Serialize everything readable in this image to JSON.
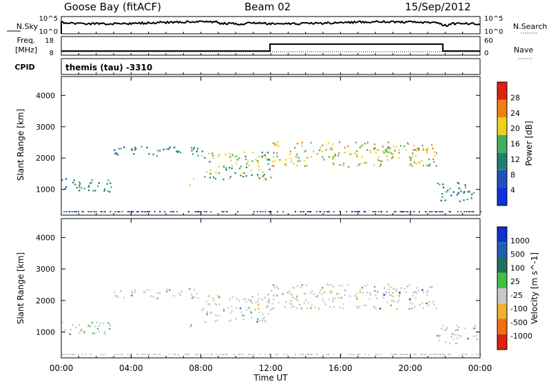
{
  "header": {
    "station": "Goose Bay (fitACF)",
    "beam": "Beam 02",
    "date": "15/Sep/2012"
  },
  "status_panels": {
    "nsky_label": "N.Sky",
    "nsky_ticks": [
      "10^5",
      "10^0"
    ],
    "nsearch_label": "N.Search",
    "nsearch_ticks": [
      "10^5",
      "10^0"
    ],
    "freq_label_top": "Freq.",
    "freq_label_bottom": "[MHz]",
    "freq_ticks": [
      "18",
      "8"
    ],
    "nave_label": "Nave",
    "nave_ticks": [
      "60",
      "0"
    ],
    "cpid_label": "CPID",
    "cpid_text": "themis (tau) -3310"
  },
  "chart_data": [
    {
      "type": "heatmap",
      "name": "power-panel",
      "ylabel": "Slant Range [km]",
      "yticks": [
        1000,
        2000,
        3000,
        4000
      ],
      "ylim": [
        180,
        4600
      ],
      "xlim": [
        0,
        24
      ],
      "colorbar": {
        "label": "Power [dB]",
        "ticks": [
          "4",
          "8",
          "12",
          "16",
          "20",
          "24",
          "28"
        ],
        "colors": [
          "#1030e0",
          "#2050c0",
          "#208070",
          "#40b060",
          "#f0d020",
          "#f08010",
          "#e02010"
        ]
      },
      "echo_regions": [
        {
          "t0": 0.0,
          "t1": 3.0,
          "r0": 880,
          "r1": 1320,
          "level": 2
        },
        {
          "t0": 3.0,
          "t1": 8.0,
          "r0": 2050,
          "r1": 2350,
          "level": 2
        },
        {
          "t0": 7.3,
          "t1": 7.7,
          "r0": 1100,
          "r1": 1320,
          "level": 5
        },
        {
          "t0": 8.0,
          "t1": 12.0,
          "r0": 1300,
          "r1": 2200,
          "level": 3
        },
        {
          "t0": 12.0,
          "t1": 21.5,
          "r0": 1700,
          "r1": 2500,
          "level": 4
        },
        {
          "t0": 21.5,
          "t1": 23.8,
          "r0": 600,
          "r1": 1200,
          "level": 2
        }
      ]
    },
    {
      "type": "heatmap",
      "name": "velocity-panel",
      "ylabel": "Slant Range [km]",
      "xlabel": "Time UT",
      "xticks": [
        "00:00",
        "04:00",
        "08:00",
        "12:00",
        "16:00",
        "20:00",
        "00:00"
      ],
      "yticks": [
        1000,
        2000,
        3000,
        4000
      ],
      "ylim": [
        180,
        4600
      ],
      "xlim": [
        0,
        24
      ],
      "colorbar": {
        "label": "Velocity [m s^-1]",
        "ticks": [
          "1000",
          "500",
          "100",
          "25",
          "-25",
          "-100",
          "-500",
          "-1000"
        ],
        "colors": [
          "#1030d0",
          "#2060b0",
          "#207060",
          "#40c040",
          "#c8c8c8",
          "#f0b030",
          "#f07010",
          "#e02010"
        ]
      }
    }
  ]
}
